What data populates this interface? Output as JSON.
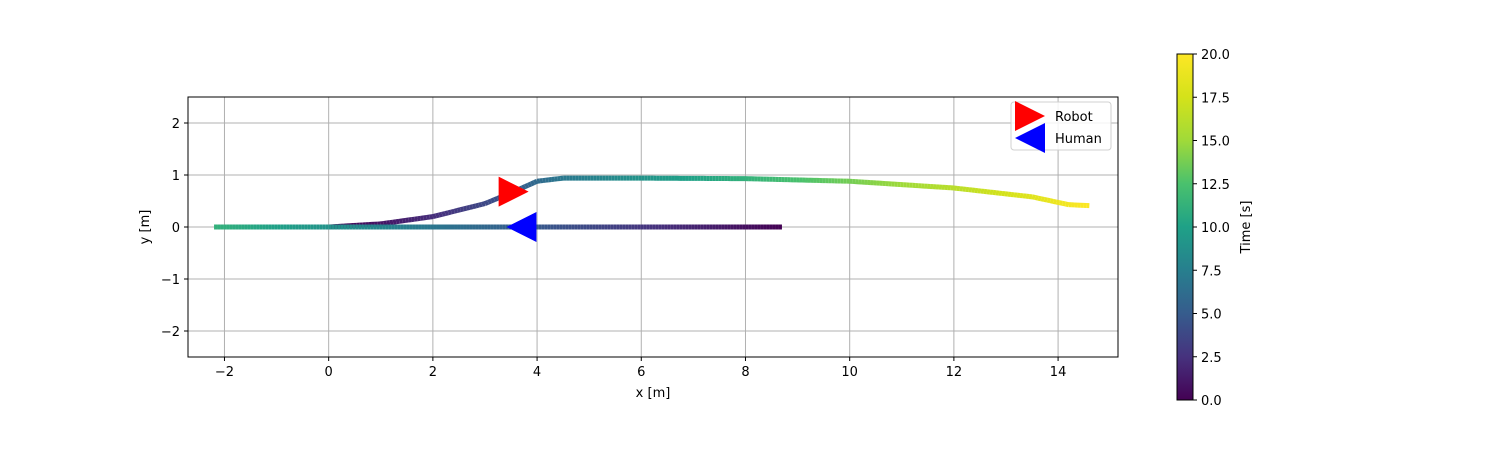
{
  "chart_data": {
    "type": "scatter",
    "xlabel": "x [m]",
    "ylabel": "y [m]",
    "xlim": [
      -2.7,
      15.15
    ],
    "ylim": [
      -2.5,
      2.5
    ],
    "xticks": [
      -2,
      0,
      2,
      4,
      6,
      8,
      10,
      12,
      14
    ],
    "yticks": [
      -2,
      -1,
      0,
      1,
      2
    ],
    "grid": true,
    "legend": {
      "position": "top-right",
      "entries": [
        {
          "label": "Robot",
          "marker": "triangle-right",
          "color": "#ff0000"
        },
        {
          "label": "Human",
          "marker": "triangle-left",
          "color": "#0000ff"
        }
      ]
    },
    "colorbar": {
      "label": "Time [s]",
      "colormap": "viridis",
      "range": [
        0,
        20
      ],
      "ticks": [
        0.0,
        2.5,
        5.0,
        7.5,
        10.0,
        12.5,
        15.0,
        17.5,
        20.0
      ]
    },
    "series": [
      {
        "name": "Robot",
        "colored_by": "Time [s]",
        "points": [
          {
            "x": 0.0,
            "y": 0.0,
            "t": 0.0
          },
          {
            "x": 1.0,
            "y": 0.06,
            "t": 1.0
          },
          {
            "x": 2.0,
            "y": 0.2,
            "t": 2.3
          },
          {
            "x": 3.0,
            "y": 0.45,
            "t": 3.8
          },
          {
            "x": 3.6,
            "y": 0.7,
            "t": 5.0
          },
          {
            "x": 4.0,
            "y": 0.88,
            "t": 6.0
          },
          {
            "x": 4.5,
            "y": 0.94,
            "t": 7.0
          },
          {
            "x": 6.0,
            "y": 0.94,
            "t": 9.0
          },
          {
            "x": 8.0,
            "y": 0.93,
            "t": 11.2
          },
          {
            "x": 10.0,
            "y": 0.88,
            "t": 13.7
          },
          {
            "x": 12.0,
            "y": 0.75,
            "t": 16.2
          },
          {
            "x": 13.5,
            "y": 0.58,
            "t": 18.2
          },
          {
            "x": 14.2,
            "y": 0.43,
            "t": 19.4
          },
          {
            "x": 14.6,
            "y": 0.41,
            "t": 20.0
          }
        ],
        "end_marker": {
          "x": 3.55,
          "y": 0.68
        }
      },
      {
        "name": "Human",
        "colored_by": "Time [s]",
        "points": [
          {
            "x": 8.7,
            "y": 0.0,
            "t": 0.0
          },
          {
            "x": 3.8,
            "y": 0.0,
            "t": 5.0
          },
          {
            "x": -2.2,
            "y": 0.0,
            "t": 11.2
          }
        ],
        "end_marker": {
          "x": 3.7,
          "y": 0.0
        }
      }
    ]
  }
}
